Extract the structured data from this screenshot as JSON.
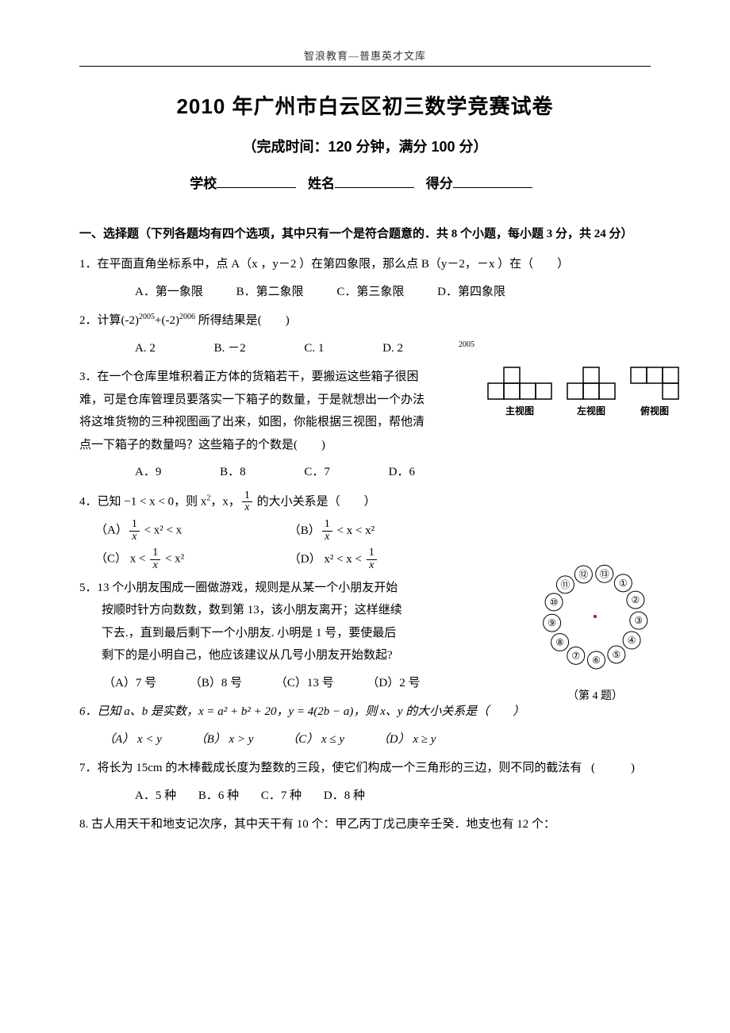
{
  "header": "智浪教育—普惠英才文库",
  "title": "2010 年广州市白云区初三数学竞赛试卷",
  "subtitle": "（完成时间：120 分钟，满分 100 分）",
  "info": {
    "school": "学校",
    "name": "姓名",
    "score": "得分"
  },
  "sectionHead": "一、选择题（下列各题均有四个选项，其中只有一个是符合题意的．共 8 个小题，每小题 3 分，共 24 分）",
  "q1": {
    "text": "1．在平面直角坐标系中，点 A（x ，y－2 ）在第四象限，那么点 B（y－2，－x ）在（　　）",
    "A": "A．第一象限",
    "B": "B．第二象限",
    "C": "C．第三象限",
    "D": "D．第四象限"
  },
  "q2": {
    "text_pre": "2．计算(-2)",
    "exp1": "2005",
    "text_mid": "+(-2)",
    "exp2": "2006",
    "text_post": " 所得结果是(　　)",
    "A": "A. 2",
    "B": "B. －2",
    "C": "C. 1",
    "D_pre": "D. 2",
    "D_exp": "2005"
  },
  "q3": {
    "text": "3．在一个仓库里堆积着正方体的货箱若干，要搬运这些箱子很困难，可是仓库管理员要落实一下箱子的数量，于是就想出一个办法  将这堆货物的三种视图画了出来，如图，你能根据三视图，帮他清点一下箱子的数量吗？这些箱子的个数是(　　)",
    "A": "A．9",
    "B": "B．8",
    "C": "C．7",
    "D": "D．6",
    "labels": {
      "main": "主视图",
      "left": "左视图",
      "top": "俯视图"
    }
  },
  "q4": {
    "stem_pre": "4．已知 −1 < x < 0，则 x",
    "stem_mid": "，x，",
    "stem_post": " 的大小关系是（　　）",
    "A_pre": "（A）",
    "A_post": " < x² < x",
    "B_pre": "（B）",
    "B_post": " < x < x²",
    "C_pre": "（C） x < ",
    "C_post": " < x²",
    "D_pre": "（D） x² < x < ",
    "frac_num": "1",
    "frac_den": "x"
  },
  "q5": {
    "l1": "5．13 个小朋友围成一圈做游戏，规则是从某一个小朋友开始",
    "l2": "按顺时针方向数数，数到第 13，该小朋友离开；这样继续",
    "l3": "下去.，直到最后剩下一个小朋友.  小明是 1 号，要使最后",
    "l4": "剩下的是小明自己，他应该建议从几号小朋友开始数起?",
    "A": "（A）7 号",
    "B": "（B）8 号",
    "C": "（C）13 号",
    "D": "（D）2 号",
    "caption": "（第 4 题）"
  },
  "q6": {
    "text": "6．已知 a、b 是实数，x = a² + b² + 20，y = 4(2b − a)，则 x、y  的大小关系是（　　）",
    "A": "（A） x < y",
    "B": "（B） x > y",
    "C": "（C） x ≤ y",
    "D": "（D） x ≥ y"
  },
  "q7": {
    "text": "7．将长为 15cm 的木棒截成长度为整数的三段，使它们构成一个三角形的三边，则不同的截法有",
    "paren": "(　　　)",
    "A": "A．5 种",
    "B": "B．6 种",
    "C": "C．7 种",
    "D": "D．8 种"
  },
  "q8": {
    "text": "8. 古人用天干和地支记次序，其中天干有 10 个：甲乙丙丁戊己庚辛壬癸．地支也有 12 个："
  },
  "circle_numbers": [
    "①",
    "②",
    "③",
    "④",
    "⑤",
    "⑥",
    "⑦",
    "⑧",
    "⑨",
    "⑩",
    "⑪",
    "⑫",
    "⑬"
  ]
}
